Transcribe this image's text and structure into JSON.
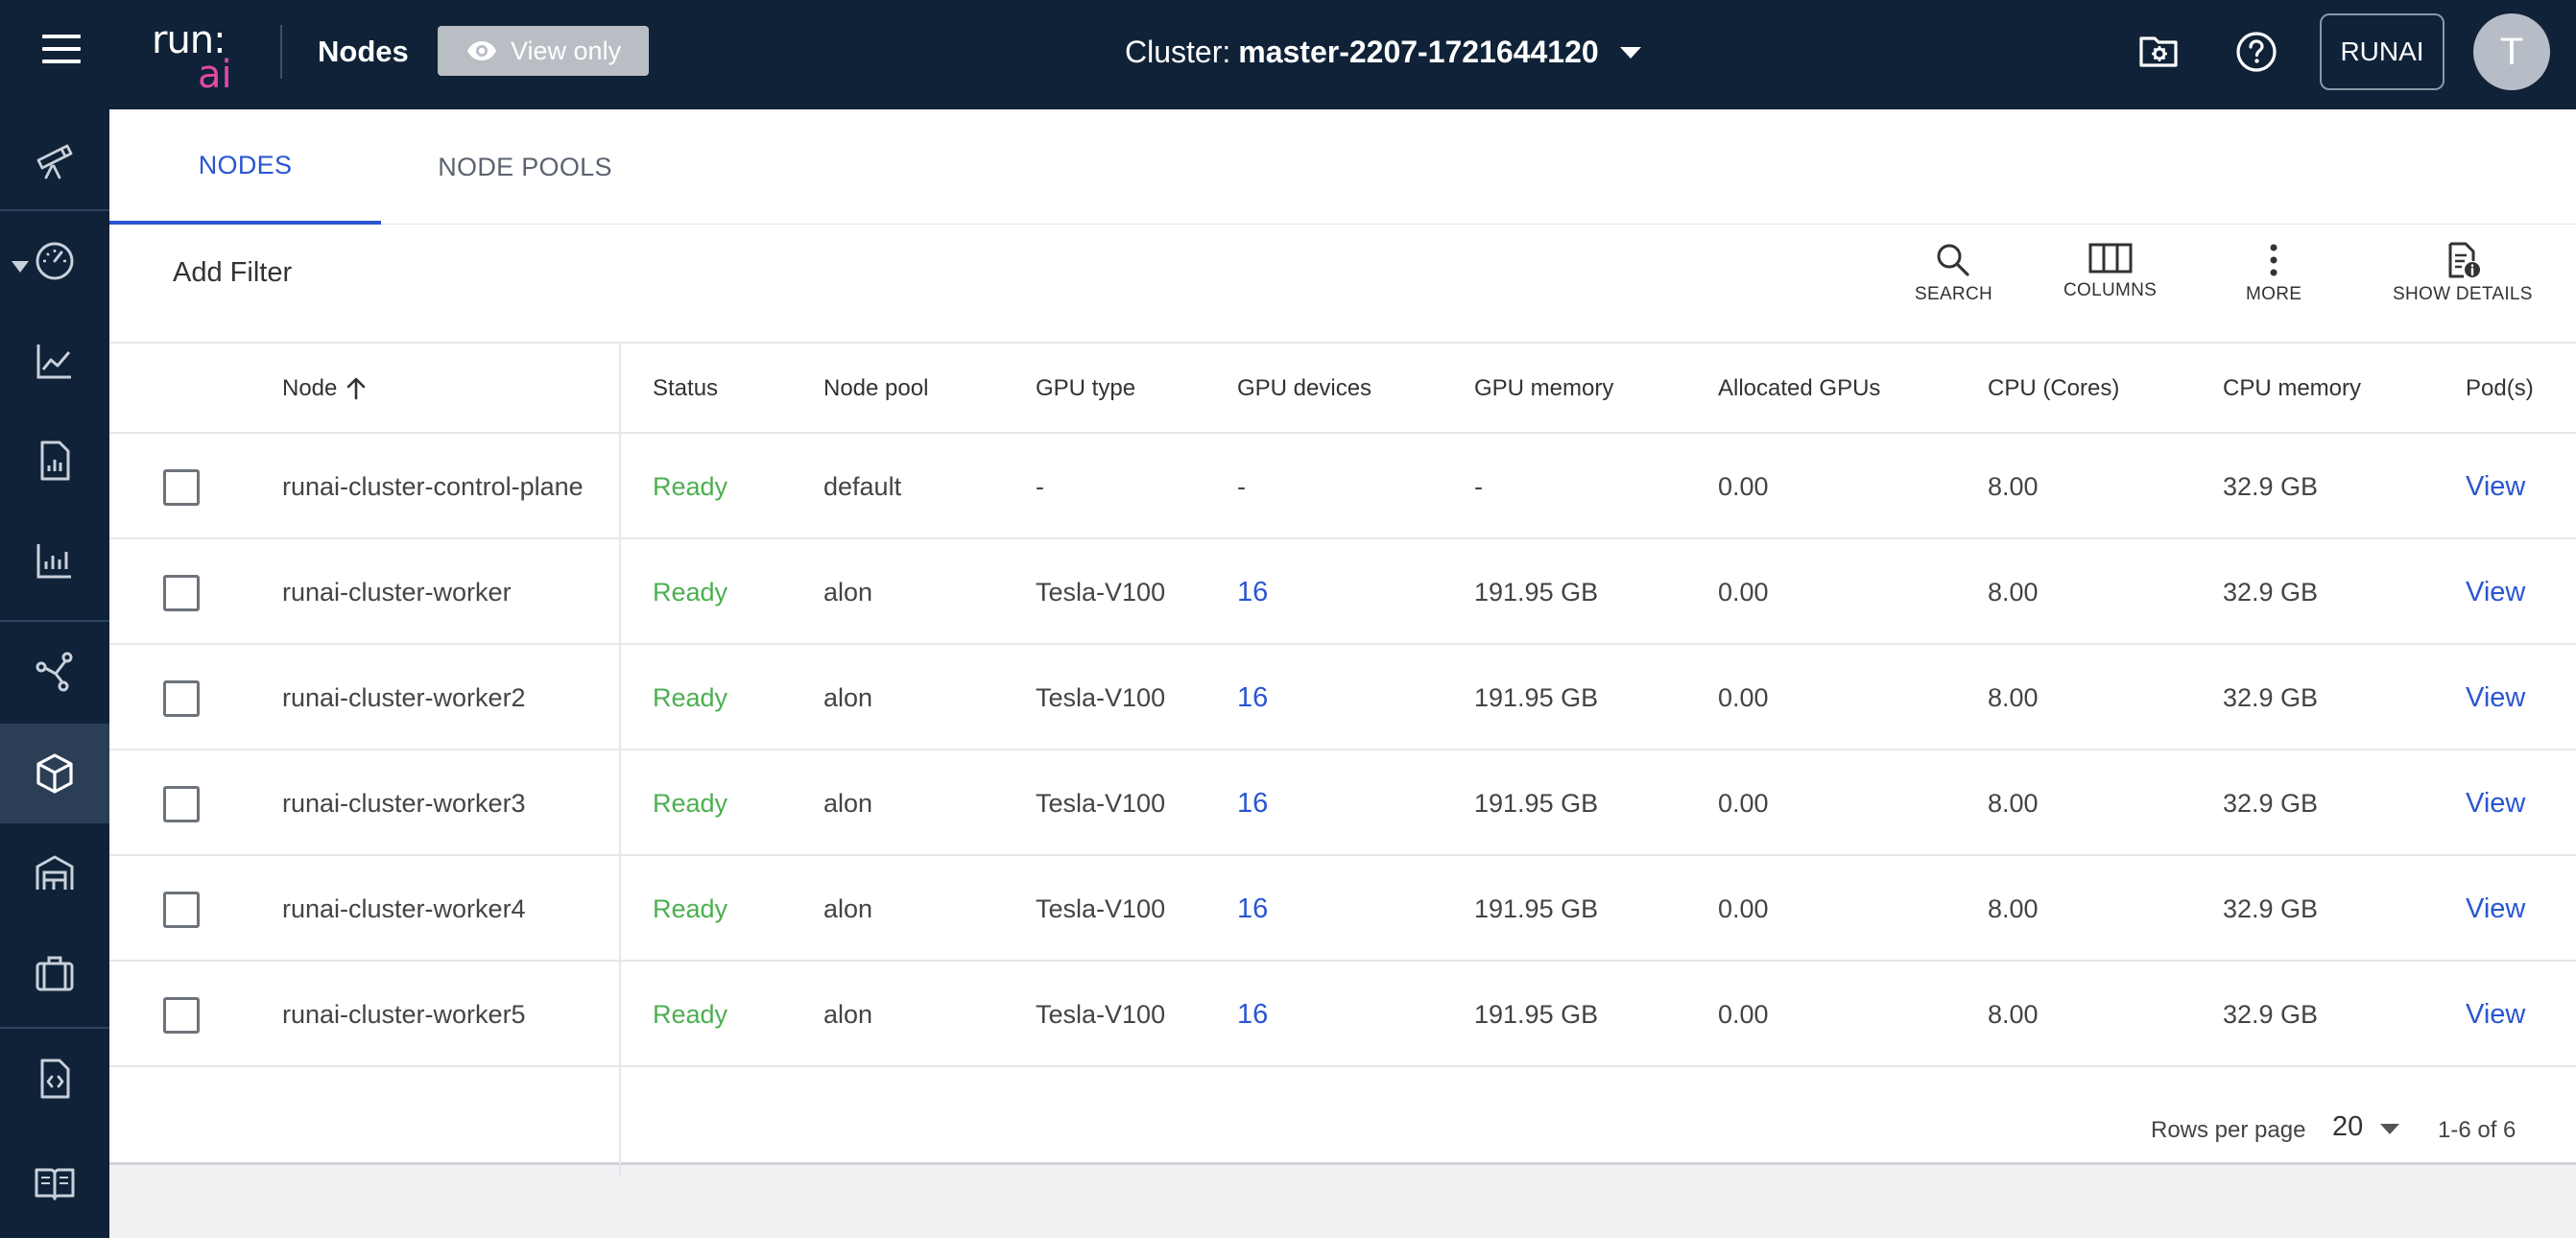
{
  "app": {
    "logo_top": "run:",
    "logo_bottom": "ai",
    "page_title": "Nodes",
    "view_only_label": "View only",
    "cluster_prefix": "Cluster:",
    "cluster_name": "master-2207-1721644120",
    "tenant_button": "RUNAI",
    "avatar_initial": "T"
  },
  "sidebar": {
    "items": [
      {
        "icon": "telescope-icon"
      },
      {
        "icon": "dashboard-gauge-icon"
      },
      {
        "icon": "analytics-line-icon"
      },
      {
        "icon": "report-icon"
      },
      {
        "icon": "bar-chart-icon"
      },
      {
        "icon": "workloads-graph-icon"
      },
      {
        "icon": "cube-icon",
        "active": true
      },
      {
        "icon": "warehouse-icon"
      },
      {
        "icon": "briefcase-icon"
      },
      {
        "icon": "api-doc-icon"
      },
      {
        "icon": "book-icon"
      }
    ]
  },
  "tabs": [
    {
      "label": "NODES",
      "active": true
    },
    {
      "label": "NODE POOLS",
      "active": false
    }
  ],
  "toolbar": {
    "add_filter": "Add Filter",
    "search": "SEARCH",
    "columns": "COLUMNS",
    "more": "MORE",
    "show_details": "SHOW DETAILS"
  },
  "table": {
    "headers": {
      "node": "Node",
      "status": "Status",
      "node_pool": "Node pool",
      "gpu_type": "GPU type",
      "gpu_devices": "GPU devices",
      "gpu_memory": "GPU memory",
      "allocated_gpus": "Allocated GPUs",
      "cpu_cores": "CPU (Cores)",
      "cpu_memory": "CPU memory",
      "pods": "Pod(s)"
    },
    "rows": [
      {
        "node": "runai-cluster-control-plane",
        "status": "Ready",
        "node_pool": "default",
        "gpu_type": "-",
        "gpu_devices": "-",
        "gpu_memory": "-",
        "allocated_gpus": "0.00",
        "cpu_cores": "8.00",
        "cpu_memory": "32.9 GB",
        "pods": "View"
      },
      {
        "node": "runai-cluster-worker",
        "status": "Ready",
        "node_pool": "alon",
        "gpu_type": "Tesla-V100",
        "gpu_devices": "16",
        "gpu_memory": "191.95 GB",
        "allocated_gpus": "0.00",
        "cpu_cores": "8.00",
        "cpu_memory": "32.9 GB",
        "pods": "View"
      },
      {
        "node": "runai-cluster-worker2",
        "status": "Ready",
        "node_pool": "alon",
        "gpu_type": "Tesla-V100",
        "gpu_devices": "16",
        "gpu_memory": "191.95 GB",
        "allocated_gpus": "0.00",
        "cpu_cores": "8.00",
        "cpu_memory": "32.9 GB",
        "pods": "View"
      },
      {
        "node": "runai-cluster-worker3",
        "status": "Ready",
        "node_pool": "alon",
        "gpu_type": "Tesla-V100",
        "gpu_devices": "16",
        "gpu_memory": "191.95 GB",
        "allocated_gpus": "0.00",
        "cpu_cores": "8.00",
        "cpu_memory": "32.9 GB",
        "pods": "View"
      },
      {
        "node": "runai-cluster-worker4",
        "status": "Ready",
        "node_pool": "alon",
        "gpu_type": "Tesla-V100",
        "gpu_devices": "16",
        "gpu_memory": "191.95 GB",
        "allocated_gpus": "0.00",
        "cpu_cores": "8.00",
        "cpu_memory": "32.9 GB",
        "pods": "View"
      },
      {
        "node": "runai-cluster-worker5",
        "status": "Ready",
        "node_pool": "alon",
        "gpu_type": "Tesla-V100",
        "gpu_devices": "16",
        "gpu_memory": "191.95 GB",
        "allocated_gpus": "0.00",
        "cpu_cores": "8.00",
        "cpu_memory": "32.9 GB",
        "pods": "View"
      }
    ]
  },
  "pagination": {
    "rows_per_page_label": "Rows per page",
    "rows_per_page_value": "20",
    "range": "1-6 of 6"
  },
  "colors": {
    "nav_bg": "#0f2238",
    "accent": "#2a55d3",
    "ready": "#4caf50",
    "logo_pink": "#e24aa4"
  }
}
